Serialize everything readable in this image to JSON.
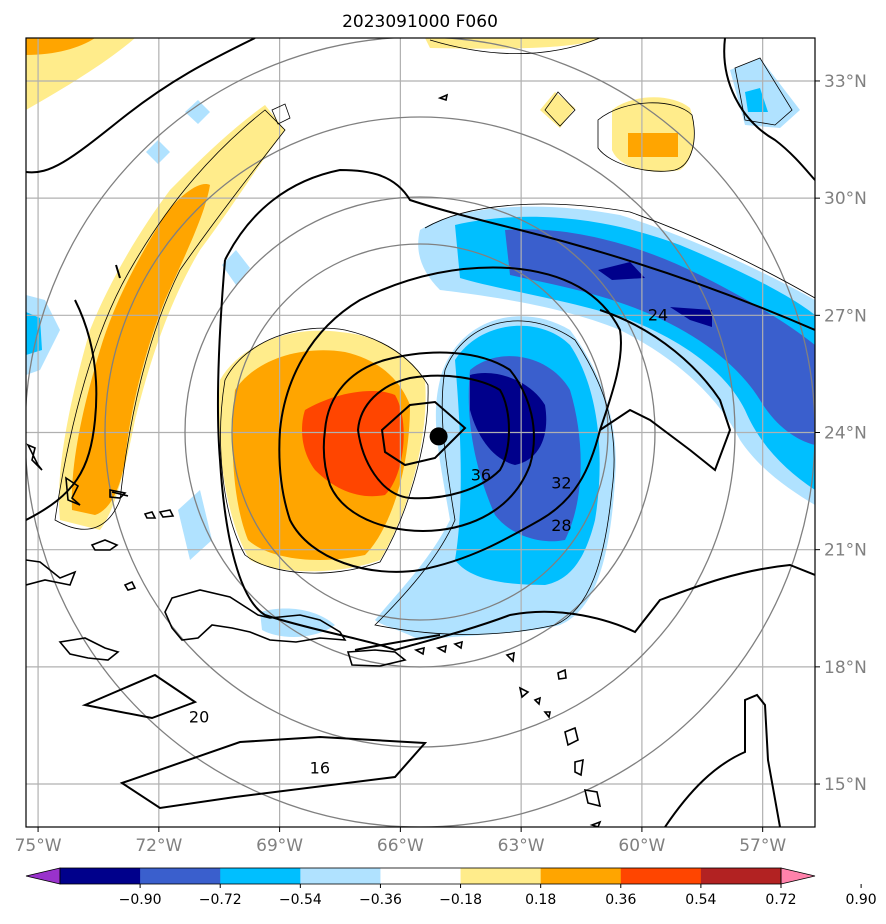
{
  "title": "2023091000 F060",
  "map": {
    "lon_range": [
      -75.3,
      -55.7
    ],
    "lat_range": [
      13.9,
      34.1
    ],
    "lon_ticks": [
      {
        "value": -75,
        "label": "75°W"
      },
      {
        "value": -72,
        "label": "72°W"
      },
      {
        "value": -69,
        "label": "69°W"
      },
      {
        "value": -66,
        "label": "66°W"
      },
      {
        "value": -63,
        "label": "63°W"
      },
      {
        "value": -60,
        "label": "60°W"
      },
      {
        "value": -57,
        "label": "57°W"
      }
    ],
    "lat_ticks": [
      {
        "value": 33,
        "label": "33°N"
      },
      {
        "value": 30,
        "label": "30°N"
      },
      {
        "value": 27,
        "label": "27°N"
      },
      {
        "value": 24,
        "label": "24°N"
      },
      {
        "value": 21,
        "label": "21°N"
      },
      {
        "value": 18,
        "label": "18°N"
      },
      {
        "value": 15,
        "label": "15°N"
      }
    ],
    "storm_center": {
      "lon": -65.05,
      "lat": 23.9
    },
    "contour_labels": [
      {
        "text": "36",
        "lon": -64.0,
        "lat": 22.9
      },
      {
        "text": "32",
        "lon": -62.0,
        "lat": 22.7
      },
      {
        "text": "28",
        "lon": -62.0,
        "lat": 21.6
      },
      {
        "text": "24",
        "lon": -59.6,
        "lat": 27.0
      },
      {
        "text": "20",
        "lon": -71.0,
        "lat": 16.7
      },
      {
        "text": "16",
        "lon": -68.0,
        "lat": 15.4
      }
    ]
  },
  "colorbar": {
    "labels": [
      "−0.90",
      "−0.72",
      "−0.54",
      "−0.36",
      "−0.18",
      "0.18",
      "0.36",
      "0.54",
      "0.72",
      "0.90"
    ],
    "colors": [
      "#9932cc",
      "#00008b",
      "#3a5fcd",
      "#00bfff",
      "#b0e2ff",
      "#ffffff",
      "#ffec8b",
      "#ffa500",
      "#ff4500",
      "#b22222",
      "#ff82ab"
    ]
  },
  "colors": {
    "grid": "#b0b0b0",
    "range_rings": "#808080",
    "contour": "#000000",
    "thin_contour": "#000000"
  }
}
